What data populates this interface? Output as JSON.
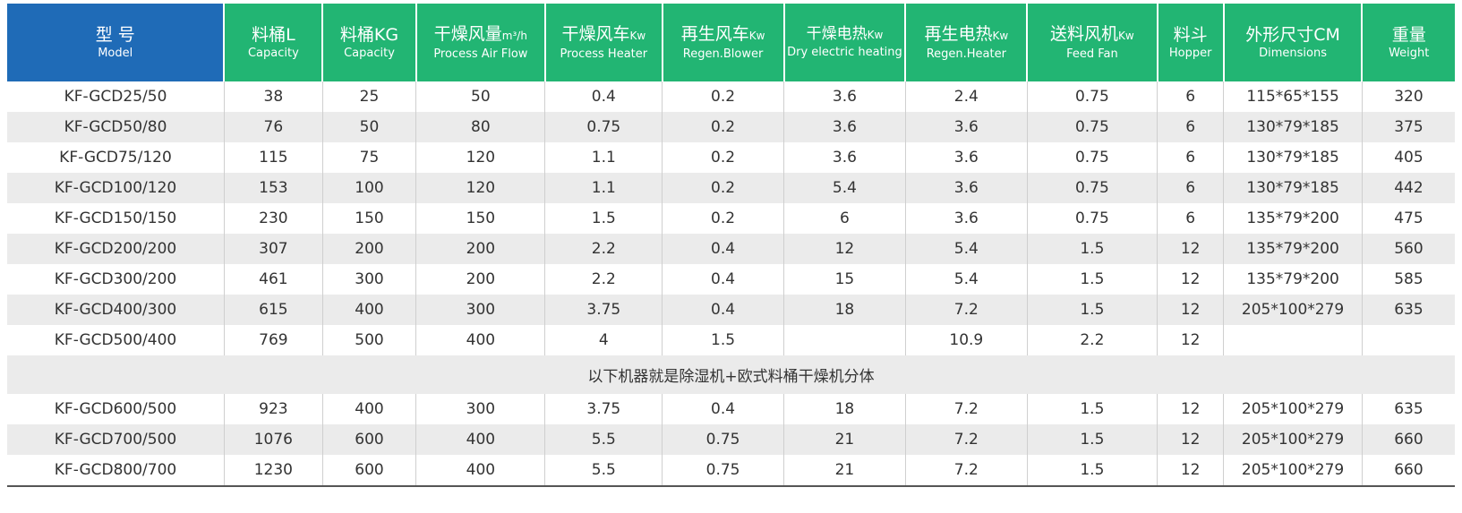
{
  "headers": [
    {
      "cn": "型 号",
      "unit": "",
      "en": "Model"
    },
    {
      "cn": "料桶L",
      "unit": "",
      "en": "Capacity"
    },
    {
      "cn": "料桶KG",
      "unit": "",
      "en": "Capacity"
    },
    {
      "cn": "干燥风量",
      "unit": "m³/h",
      "en": "Process Air Flow"
    },
    {
      "cn": "干燥风车",
      "unit": "Kw",
      "en": "Process Heater"
    },
    {
      "cn": "再生风车",
      "unit": "Kw",
      "en": "Regen.Blower"
    },
    {
      "cn": "干燥电热",
      "unit": "Kw",
      "en": "Dry electric heating"
    },
    {
      "cn": "再生电热",
      "unit": "Kw",
      "en": "Regen.Heater"
    },
    {
      "cn": "送料风机",
      "unit": "Kw",
      "en": "Feed Fan"
    },
    {
      "cn": "料斗",
      "unit": "",
      "en": "Hopper"
    },
    {
      "cn": "外形尺寸CM",
      "unit": "",
      "en": "Dimensions"
    },
    {
      "cn": "重量",
      "unit": "",
      "en": "Weight"
    }
  ],
  "rows": [
    [
      "KF-GCD25/50",
      "38",
      "25",
      "50",
      "0.4",
      "0.2",
      "3.6",
      "2.4",
      "0.75",
      "6",
      "115*65*155",
      "320"
    ],
    [
      "KF-GCD50/80",
      "76",
      "50",
      "80",
      "0.75",
      "0.2",
      "3.6",
      "3.6",
      "0.75",
      "6",
      "130*79*185",
      "375"
    ],
    [
      "KF-GCD75/120",
      "115",
      "75",
      "120",
      "1.1",
      "0.2",
      "3.6",
      "3.6",
      "0.75",
      "6",
      "130*79*185",
      "405"
    ],
    [
      "KF-GCD100/120",
      "153",
      "100",
      "120",
      "1.1",
      "0.2",
      "5.4",
      "3.6",
      "0.75",
      "6",
      "130*79*185",
      "442"
    ],
    [
      "KF-GCD150/150",
      "230",
      "150",
      "150",
      "1.5",
      "0.2",
      "6",
      "3.6",
      "0.75",
      "6",
      "135*79*200",
      "475"
    ],
    [
      "KF-GCD200/200",
      "307",
      "200",
      "200",
      "2.2",
      "0.4",
      "12",
      "5.4",
      "1.5",
      "12",
      "135*79*200",
      "560"
    ],
    [
      "KF-GCD300/200",
      "461",
      "300",
      "200",
      "2.2",
      "0.4",
      "15",
      "5.4",
      "1.5",
      "12",
      "135*79*200",
      "585"
    ],
    [
      "KF-GCD400/300",
      "615",
      "400",
      "300",
      "3.75",
      "0.4",
      "18",
      "7.2",
      "1.5",
      "12",
      "205*100*279",
      "635"
    ],
    [
      "KF-GCD500/400",
      "769",
      "500",
      "400",
      "4",
      "1.5",
      "",
      "10.9",
      "2.2",
      "12",
      "",
      ""
    ]
  ],
  "note": "以下机器就是除湿机+欧式料桶干燥机分体",
  "rows_after_note": [
    [
      "KF-GCD600/500",
      "923",
      "400",
      "300",
      "3.75",
      "0.4",
      "18",
      "7.2",
      "1.5",
      "12",
      "205*100*279",
      "635"
    ],
    [
      "KF-GCD700/500",
      "1076",
      "600",
      "400",
      "5.5",
      "0.75",
      "21",
      "7.2",
      "1.5",
      "12",
      "205*100*279",
      "660"
    ],
    [
      "KF-GCD800/700",
      "1230",
      "600",
      "400",
      "5.5",
      "0.75",
      "21",
      "7.2",
      "1.5",
      "12",
      "205*100*279",
      "660"
    ]
  ],
  "colors": {
    "model_header": "#1f6bb7",
    "header": "#22b573",
    "row_shade": "#ebebeb"
  }
}
